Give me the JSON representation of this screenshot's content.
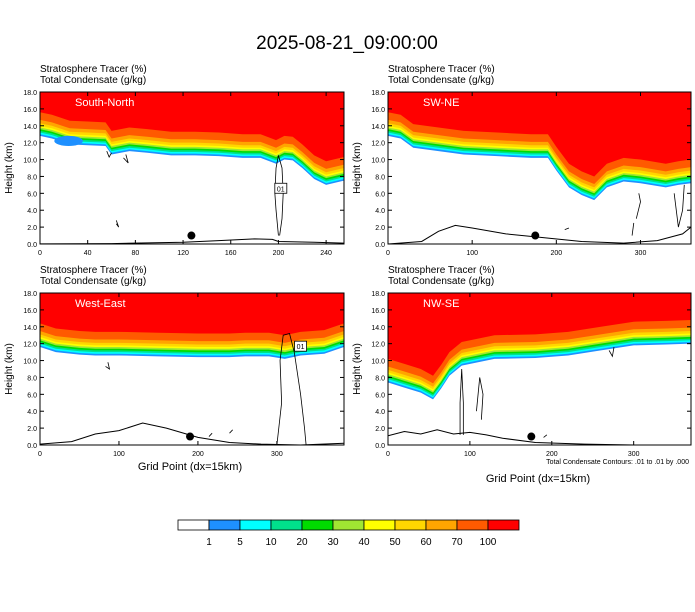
{
  "page": {
    "title": "2025-08-21_09:00:00",
    "header_line1": "Stratosphere Tracer   (%)",
    "header_line2": "Total Condensate   (g/kg)",
    "xlabel": "Grid Point (dx=15km)",
    "ylabel": "Height (km)",
    "contour_note": "Total Condensate Contours: .01 to .01 by .000"
  },
  "colorbar": {
    "labels": [
      "1",
      "5",
      "10",
      "20",
      "30",
      "40",
      "50",
      "60",
      "70",
      "100"
    ],
    "colors": [
      "#ffffff",
      "#1e90ff",
      "#00ffff",
      "#00e08c",
      "#00dc00",
      "#a0e632",
      "#ffff00",
      "#ffd700",
      "#ffa500",
      "#ff5a00",
      "#ff0000"
    ]
  },
  "colors": {
    "red": "#ff0000",
    "orange_red": "#ff5a00",
    "orange": "#ffa500",
    "gold": "#ffd700",
    "yellow": "#ffff00",
    "lime": "#a0e632",
    "green": "#00dc00",
    "teal": "#00e08c",
    "cyan": "#00ffff",
    "blue": "#1e90ff"
  },
  "chart_data": [
    {
      "type": "heatmap",
      "panel": "South-North",
      "xlim": [
        0,
        255
      ],
      "ylim": [
        0,
        18
      ],
      "xticks": [
        0,
        40,
        80,
        120,
        160,
        200,
        240
      ],
      "yticks": [
        0,
        2,
        4,
        6,
        8,
        10,
        12,
        14,
        16,
        18
      ],
      "ytick_labels": [
        "0.0",
        "2.0",
        "4.0",
        "6.0",
        "8.0",
        "10.0",
        "12.0",
        "14.0",
        "16.0",
        "18.0"
      ],
      "tracer_base_km": [
        [
          0,
          15.6
        ],
        [
          10,
          15.3
        ],
        [
          25,
          14.6
        ],
        [
          40,
          14.5
        ],
        [
          55,
          14.4
        ],
        [
          60,
          13.4
        ],
        [
          75,
          13.8
        ],
        [
          90,
          13.6
        ],
        [
          110,
          13.3
        ],
        [
          130,
          13.3
        ],
        [
          150,
          13.2
        ],
        [
          170,
          13.0
        ],
        [
          185,
          13.0
        ],
        [
          198,
          12.3
        ],
        [
          205,
          12.8
        ],
        [
          212,
          12.7
        ],
        [
          220,
          11.8
        ],
        [
          230,
          10.5
        ],
        [
          240,
          9.8
        ],
        [
          255,
          10.3
        ]
      ],
      "blue_blob": {
        "x": [
          12,
          36
        ],
        "y": [
          11.6,
          12.8
        ]
      },
      "terrain_km": [
        [
          0,
          0.02
        ],
        [
          60,
          0.05
        ],
        [
          120,
          0.2
        ],
        [
          150,
          0.4
        ],
        [
          180,
          0.6
        ],
        [
          195,
          0.55
        ],
        [
          200,
          0.3
        ],
        [
          230,
          0.2
        ],
        [
          255,
          0.1
        ]
      ],
      "marker": {
        "x": 127,
        "y": 1.0
      },
      "box_label": "01",
      "box_at": {
        "x": 202,
        "y": 6.6
      }
    },
    {
      "type": "heatmap",
      "panel": "SW-NE",
      "xlim": [
        0,
        360
      ],
      "ylim": [
        0,
        18
      ],
      "xticks": [
        0,
        100,
        200,
        300
      ],
      "yticks": [
        0,
        2,
        4,
        6,
        8,
        10,
        12,
        14,
        16,
        18
      ],
      "ytick_labels": [
        "0.0",
        "2.0",
        "4.0",
        "6.0",
        "8.0",
        "10.0",
        "12.0",
        "14.0",
        "16.0",
        "18.0"
      ],
      "tracer_base_km": [
        [
          0,
          15.6
        ],
        [
          15,
          15.3
        ],
        [
          30,
          14.2
        ],
        [
          60,
          13.8
        ],
        [
          90,
          13.4
        ],
        [
          130,
          13.2
        ],
        [
          170,
          13.0
        ],
        [
          190,
          13.0
        ],
        [
          200,
          11.5
        ],
        [
          215,
          9.5
        ],
        [
          230,
          8.6
        ],
        [
          245,
          8.0
        ],
        [
          260,
          9.5
        ],
        [
          280,
          10.2
        ],
        [
          300,
          10.0
        ],
        [
          330,
          9.5
        ],
        [
          345,
          9.8
        ],
        [
          360,
          10.0
        ]
      ],
      "terrain_km": [
        [
          0,
          0.0
        ],
        [
          40,
          0.3
        ],
        [
          60,
          1.5
        ],
        [
          80,
          2.2
        ],
        [
          100,
          1.9
        ],
        [
          140,
          1.2
        ],
        [
          180,
          0.8
        ],
        [
          230,
          0.3
        ],
        [
          280,
          0.1
        ],
        [
          320,
          0.4
        ],
        [
          350,
          1.2
        ],
        [
          360,
          2.0
        ]
      ],
      "marker": {
        "x": 175,
        "y": 1.0
      }
    },
    {
      "type": "heatmap",
      "panel": "West-East",
      "xlim": [
        0,
        385
      ],
      "ylim": [
        0,
        18
      ],
      "xticks": [
        0,
        100,
        200,
        300
      ],
      "yticks": [
        0,
        2,
        4,
        6,
        8,
        10,
        12,
        14,
        16,
        18
      ],
      "ytick_labels": [
        "0.0",
        "2.0",
        "4.0",
        "6.0",
        "8.0",
        "10.0",
        "12.0",
        "14.0",
        "16.0",
        "18.0"
      ],
      "tracer_base_km": [
        [
          0,
          14.4
        ],
        [
          20,
          13.8
        ],
        [
          50,
          13.5
        ],
        [
          70,
          13.4
        ],
        [
          100,
          13.4
        ],
        [
          150,
          13.3
        ],
        [
          200,
          13.2
        ],
        [
          240,
          13.2
        ],
        [
          260,
          13.3
        ],
        [
          290,
          13.3
        ],
        [
          310,
          13.0
        ],
        [
          330,
          13.4
        ],
        [
          360,
          13.6
        ],
        [
          385,
          14.4
        ]
      ],
      "terrain_km": [
        [
          0,
          0.1
        ],
        [
          40,
          0.4
        ],
        [
          70,
          1.3
        ],
        [
          100,
          1.7
        ],
        [
          130,
          2.6
        ],
        [
          160,
          2.0
        ],
        [
          200,
          0.9
        ],
        [
          240,
          0.3
        ],
        [
          280,
          0.1
        ],
        [
          330,
          0.0
        ],
        [
          385,
          0.2
        ]
      ],
      "marker": {
        "x": 190,
        "y": 1.0
      },
      "box_label": "01",
      "box_at": {
        "x": 330,
        "y": 11.7
      }
    },
    {
      "type": "heatmap",
      "panel": "NW-SE",
      "xlim": [
        0,
        370
      ],
      "ylim": [
        0,
        18
      ],
      "xticks": [
        0,
        100,
        200,
        300
      ],
      "yticks": [
        0,
        2,
        4,
        6,
        8,
        10,
        12,
        14,
        16,
        18
      ],
      "ytick_labels": [
        "0.0",
        "2.0",
        "4.0",
        "6.0",
        "8.0",
        "10.0",
        "12.0",
        "14.0",
        "16.0",
        "18.0"
      ],
      "tracer_base_km": [
        [
          0,
          10.2
        ],
        [
          20,
          9.6
        ],
        [
          40,
          9.0
        ],
        [
          55,
          8.2
        ],
        [
          65,
          9.5
        ],
        [
          75,
          11.0
        ],
        [
          90,
          12.2
        ],
        [
          130,
          13.0
        ],
        [
          180,
          13.1
        ],
        [
          220,
          13.4
        ],
        [
          260,
          14.0
        ],
        [
          300,
          14.6
        ],
        [
          340,
          14.7
        ],
        [
          370,
          14.8
        ]
      ],
      "terrain_km": [
        [
          0,
          1.1
        ],
        [
          20,
          1.6
        ],
        [
          40,
          1.3
        ],
        [
          60,
          1.8
        ],
        [
          80,
          1.3
        ],
        [
          100,
          1.5
        ],
        [
          120,
          1.2
        ],
        [
          140,
          0.8
        ],
        [
          180,
          0.3
        ],
        [
          240,
          0.1
        ],
        [
          300,
          0.0
        ],
        [
          370,
          0.0
        ]
      ],
      "marker": {
        "x": 175,
        "y": 1.0
      }
    }
  ]
}
